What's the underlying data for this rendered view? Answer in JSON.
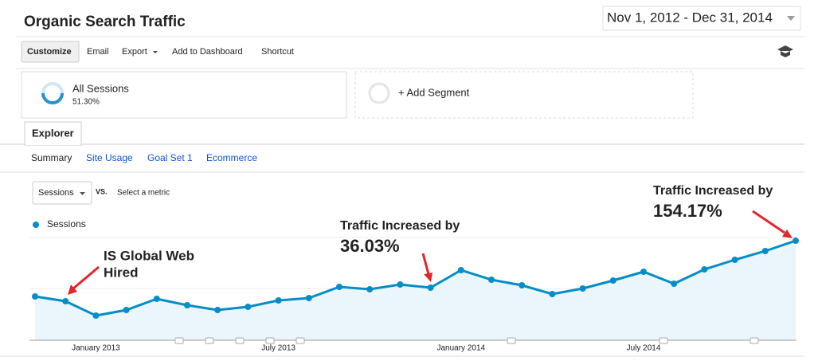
{
  "header": {
    "title": "Organic Search Traffic",
    "date_range": "Nov 1, 2012 - Dec 31, 2014"
  },
  "toolbar": {
    "items": [
      "Customize",
      "Email",
      "Export",
      "Add to Dashboard",
      "Shortcut"
    ]
  },
  "segments": {
    "active": {
      "name": "All Sessions",
      "share": "51.30%"
    },
    "add": "+ Add Segment"
  },
  "tabs": {
    "main": "Explorer",
    "sub": [
      "Summary",
      "Site Usage",
      "Goal Set 1",
      "Ecommerce"
    ]
  },
  "metric_picker": {
    "metric": "Sessions",
    "vs": "VS.",
    "select": "Select a metric"
  },
  "chart_data": {
    "type": "line",
    "categories": [
      null,
      null,
      "January 2013",
      null,
      null,
      null,
      null,
      null,
      "July 2013",
      null,
      null,
      null,
      null,
      null,
      "January 2014",
      null,
      null,
      null,
      null,
      null,
      "July 2014",
      null,
      null,
      null,
      null,
      null
    ],
    "series": [
      {
        "name": "Sessions",
        "color": "#058dc7",
        "values": [
          55,
          49,
          31,
          38,
          52,
          44,
          38,
          42,
          50,
          53,
          67,
          64,
          70,
          66,
          88,
          76,
          69,
          58,
          65,
          75,
          86,
          71,
          89,
          101,
          112,
          125
        ]
      }
    ],
    "ylim": [
      0,
      130
    ],
    "annotations": [
      {
        "lines": [
          "IS Global Web",
          "Hired"
        ],
        "color": "#e3262b"
      },
      {
        "lines": [
          "Traffic Increased by",
          "36.03%"
        ],
        "color": "#e3262b"
      },
      {
        "lines": [
          "Traffic Increased by",
          "154.17%"
        ],
        "color": "#e3262b"
      }
    ]
  }
}
